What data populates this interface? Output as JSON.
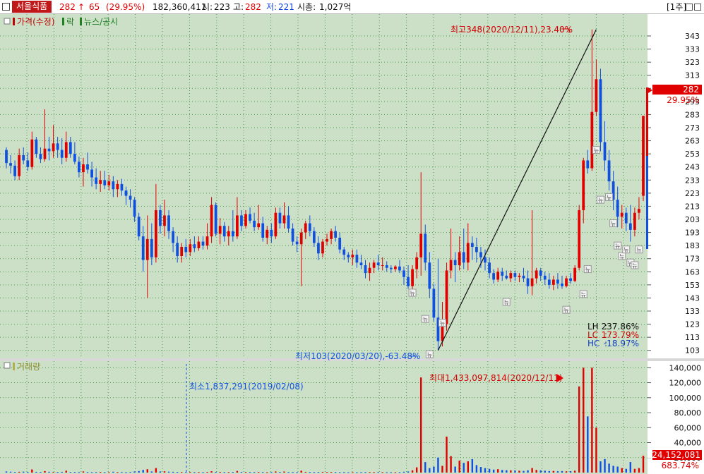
{
  "header": {
    "stock_name": "서울식품",
    "price": "282",
    "change_arrow": "↑",
    "change": "65",
    "change_pct": "(29.95%)",
    "volume": "182,360,411",
    "open_label": "시:",
    "open": "223",
    "high_label": "고:",
    "high": "282",
    "low_label": "저:",
    "low": "221",
    "mcap_label": "시총:",
    "mcap": "1,027억",
    "period": "[1주]"
  },
  "price_panel": {
    "legend": [
      {
        "label": "가격(수정)",
        "color": "#c00000"
      },
      {
        "label": "락",
        "color": "#208020"
      },
      {
        "label": "뉴스/공시",
        "color": "#208020"
      }
    ],
    "high_note": "최고348(2020/12/11),23.40%",
    "low_note": "최저103(2020/03/20),-63.48%",
    "news_glyph": "뉴",
    "current_price_tag": "282",
    "current_pct_tag": "29.95%",
    "stats": [
      {
        "label": "LH",
        "sep": ":",
        "value": "237.86%",
        "color": "#111111"
      },
      {
        "label": "LC",
        "sep": ":",
        "value": "173.79%",
        "color": "#d00000"
      },
      {
        "label": "HC",
        "sep": ":",
        "value": "-18.97%",
        "color": "#1040c0"
      }
    ]
  },
  "volume_panel": {
    "legend": "거래량",
    "min_note": "최소1,837,291(2019/02/08)",
    "max_note": "최대1,433,097,814(2020/12/11)",
    "current_volume_tag": "224,152,081",
    "current_pct_tag": "683.74%"
  },
  "colors": {
    "background": "#cce0c8",
    "axis_background": "#ffffff",
    "up": "#e00000",
    "down": "#1050e0",
    "grid": "#4a9a4a"
  },
  "chart_data": [
    {
      "type": "candlestick",
      "ylim": [
        98,
        350
      ],
      "y_ticks": [
        103,
        113,
        123,
        133,
        143,
        153,
        163,
        173,
        183,
        193,
        203,
        213,
        223,
        233,
        243,
        253,
        263,
        273,
        283,
        293,
        303,
        313,
        323,
        333,
        343
      ],
      "grid": true,
      "trendline": {
        "from": {
          "index": 101,
          "value": 103
        },
        "to": {
          "index": 138,
          "value": 348
        }
      },
      "candles": [
        [
          256,
          258,
          242,
          246
        ],
        [
          246,
          252,
          238,
          244
        ],
        [
          244,
          248,
          233,
          236
        ],
        [
          236,
          257,
          233,
          252
        ],
        [
          252,
          258,
          245,
          248
        ],
        [
          248,
          254,
          240,
          243
        ],
        [
          243,
          270,
          241,
          264
        ],
        [
          264,
          266,
          250,
          253
        ],
        [
          253,
          258,
          246,
          249
        ],
        [
          249,
          287,
          247,
          257
        ],
        [
          257,
          266,
          248,
          255
        ],
        [
          255,
          275,
          250,
          261
        ],
        [
          261,
          266,
          250,
          256
        ],
        [
          256,
          265,
          245,
          250
        ],
        [
          250,
          270,
          247,
          262
        ],
        [
          262,
          266,
          250,
          253
        ],
        [
          253,
          262,
          245,
          247
        ],
        [
          247,
          251,
          235,
          239
        ],
        [
          239,
          250,
          228,
          245
        ],
        [
          245,
          254,
          238,
          241
        ],
        [
          241,
          247,
          228,
          235
        ],
        [
          235,
          242,
          226,
          230
        ],
        [
          230,
          240,
          224,
          233
        ],
        [
          233,
          240,
          226,
          229
        ],
        [
          229,
          237,
          225,
          232
        ],
        [
          232,
          236,
          220,
          226
        ],
        [
          226,
          233,
          220,
          230
        ],
        [
          230,
          234,
          221,
          225
        ],
        [
          225,
          228,
          214,
          221
        ],
        [
          221,
          226,
          212,
          218
        ],
        [
          218,
          220,
          201,
          205
        ],
        [
          205,
          208,
          187,
          190
        ],
        [
          190,
          198,
          163,
          172
        ],
        [
          172,
          206,
          143,
          188
        ],
        [
          188,
          200,
          168,
          174
        ],
        [
          174,
          230,
          170,
          210
        ],
        [
          210,
          214,
          192,
          198
        ],
        [
          198,
          218,
          190,
          206
        ],
        [
          206,
          210,
          188,
          194
        ],
        [
          194,
          197,
          178,
          185
        ],
        [
          185,
          190,
          170,
          175
        ],
        [
          175,
          185,
          170,
          182
        ],
        [
          182,
          188,
          174,
          178
        ],
        [
          178,
          188,
          175,
          184
        ],
        [
          184,
          190,
          178,
          181
        ],
        [
          181,
          190,
          179,
          186
        ],
        [
          186,
          190,
          180,
          183
        ],
        [
          183,
          200,
          180,
          190
        ],
        [
          190,
          220,
          185,
          214
        ],
        [
          214,
          216,
          190,
          192
        ],
        [
          192,
          204,
          184,
          198
        ],
        [
          198,
          201,
          186,
          190
        ],
        [
          190,
          198,
          183,
          194
        ],
        [
          194,
          210,
          186,
          190
        ],
        [
          190,
          220,
          188,
          206
        ],
        [
          206,
          210,
          194,
          198
        ],
        [
          198,
          210,
          196,
          207
        ],
        [
          207,
          212,
          200,
          202
        ],
        [
          202,
          208,
          194,
          197
        ],
        [
          197,
          214,
          195,
          200
        ],
        [
          200,
          205,
          186,
          189
        ],
        [
          189,
          198,
          184,
          195
        ],
        [
          195,
          200,
          185,
          190
        ],
        [
          190,
          212,
          188,
          208
        ],
        [
          208,
          212,
          196,
          200
        ],
        [
          200,
          216,
          196,
          206
        ],
        [
          206,
          213,
          193,
          196
        ],
        [
          196,
          200,
          183,
          186
        ],
        [
          186,
          190,
          178,
          184
        ],
        [
          184,
          196,
          152,
          193
        ],
        [
          193,
          202,
          188,
          200
        ],
        [
          200,
          206,
          190,
          194
        ],
        [
          194,
          197,
          182,
          185
        ],
        [
          185,
          190,
          172,
          177
        ],
        [
          177,
          188,
          174,
          186
        ],
        [
          186,
          192,
          183,
          188
        ],
        [
          188,
          196,
          184,
          194
        ],
        [
          194,
          198,
          186,
          189
        ],
        [
          189,
          193,
          177,
          180
        ],
        [
          180,
          182,
          172,
          176
        ],
        [
          176,
          178,
          170,
          174
        ],
        [
          174,
          180,
          168,
          176
        ],
        [
          176,
          180,
          166,
          170
        ],
        [
          170,
          176,
          165,
          168
        ],
        [
          168,
          172,
          158,
          162
        ],
        [
          162,
          170,
          156,
          166
        ],
        [
          166,
          172,
          162,
          170
        ],
        [
          170,
          176,
          164,
          168
        ],
        [
          168,
          174,
          164,
          168
        ],
        [
          168,
          171,
          163,
          166
        ],
        [
          166,
          168,
          162,
          165
        ],
        [
          165,
          168,
          163,
          167
        ],
        [
          167,
          172,
          162,
          164
        ],
        [
          164,
          167,
          153,
          159
        ],
        [
          159,
          168,
          150,
          152
        ],
        [
          152,
          168,
          146,
          165
        ],
        [
          165,
          178,
          158,
          174
        ],
        [
          174,
          239,
          160,
          192
        ],
        [
          192,
          199,
          164,
          170
        ],
        [
          170,
          178,
          143,
          150
        ],
        [
          150,
          154,
          125,
          128
        ],
        [
          128,
          173,
          103,
          110
        ],
        [
          110,
          140,
          106,
          123
        ],
        [
          123,
          170,
          118,
          164
        ],
        [
          164,
          196,
          158,
          172
        ],
        [
          172,
          178,
          155,
          168
        ],
        [
          168,
          190,
          164,
          178
        ],
        [
          178,
          196,
          165,
          170
        ],
        [
          170,
          200,
          164,
          185
        ],
        [
          185,
          190,
          172,
          182
        ],
        [
          182,
          189,
          170,
          178
        ],
        [
          178,
          182,
          166,
          174
        ],
        [
          174,
          180,
          164,
          170
        ],
        [
          170,
          174,
          158,
          162
        ],
        [
          162,
          165,
          154,
          157
        ],
        [
          157,
          166,
          155,
          163
        ],
        [
          163,
          166,
          156,
          160
        ],
        [
          160,
          164,
          157,
          158
        ],
        [
          158,
          164,
          155,
          162
        ],
        [
          162,
          164,
          156,
          159
        ],
        [
          159,
          162,
          155,
          160
        ],
        [
          160,
          166,
          155,
          158
        ],
        [
          158,
          164,
          146,
          152
        ],
        [
          152,
          210,
          145,
          158
        ],
        [
          158,
          166,
          154,
          164
        ],
        [
          164,
          166,
          156,
          160
        ],
        [
          160,
          163,
          153,
          157
        ],
        [
          157,
          162,
          150,
          153
        ],
        [
          153,
          160,
          149,
          157
        ],
        [
          157,
          162,
          150,
          154
        ],
        [
          154,
          160,
          150,
          152
        ],
        [
          152,
          160,
          151,
          158
        ],
        [
          158,
          162,
          154,
          156
        ],
        [
          156,
          168,
          155,
          166
        ],
        [
          166,
          214,
          164,
          210
        ],
        [
          210,
          250,
          200,
          248
        ],
        [
          248,
          256,
          238,
          242
        ],
        [
          242,
          348,
          240,
          285
        ],
        [
          285,
          325,
          282,
          310
        ],
        [
          310,
          318,
          255,
          262
        ],
        [
          262,
          278,
          240,
          248
        ],
        [
          248,
          256,
          225,
          232
        ],
        [
          232,
          240,
          210,
          218
        ],
        [
          218,
          228,
          197,
          205
        ],
        [
          205,
          214,
          196,
          208
        ],
        [
          208,
          212,
          194,
          200
        ],
        [
          200,
          214,
          186,
          195
        ],
        [
          195,
          212,
          190,
          208
        ],
        [
          208,
          220,
          203,
          211
        ],
        [
          221,
          282,
          217,
          282
        ]
      ],
      "news_markers": [
        {
          "index": 95,
          "value": 147
        },
        {
          "index": 98,
          "value": 127
        },
        {
          "index": 99,
          "value": 100
        },
        {
          "index": 102,
          "value": 124
        },
        {
          "index": 117,
          "value": 140
        },
        {
          "index": 131,
          "value": 134
        },
        {
          "index": 135,
          "value": 146
        },
        {
          "index": 136,
          "value": 165
        },
        {
          "index": 138,
          "value": 256
        },
        {
          "index": 139,
          "value": 218
        },
        {
          "index": 141,
          "value": 220
        },
        {
          "index": 142,
          "value": 200
        },
        {
          "index": 143,
          "value": 183
        },
        {
          "index": 144,
          "value": 175
        },
        {
          "index": 145,
          "value": 180
        },
        {
          "index": 146,
          "value": 170
        },
        {
          "index": 147,
          "value": 168
        },
        {
          "index": 148,
          "value": 180
        }
      ]
    },
    {
      "type": "bar",
      "title": "거래량",
      "ylim": [
        0,
        145000
      ],
      "y_ticks": [
        20000,
        40000,
        60000,
        80000,
        100000,
        120000,
        140000
      ],
      "y_tick_labels": [
        "20,000",
        "40,000",
        "60,000",
        "80,000",
        "100,000",
        "120,000",
        "140,000"
      ],
      "grid": true,
      "values": [
        1500,
        1200,
        900,
        1100,
        1300,
        1000,
        4200,
        1000,
        900,
        2000,
        1100,
        900,
        800,
        1000,
        2500,
        900,
        800,
        700,
        1500,
        800,
        600,
        700,
        900,
        600,
        500,
        1200,
        700,
        800,
        600,
        900,
        1500,
        2000,
        3500,
        4500,
        1500,
        6000,
        1500,
        1700,
        1200,
        1100,
        900,
        800,
        700,
        900,
        700,
        800,
        600,
        900,
        1800,
        1000,
        900,
        700,
        800,
        900,
        2200,
        1000,
        900,
        800,
        700,
        900,
        800,
        600,
        700,
        1500,
        900,
        1400,
        800,
        700,
        600,
        2500,
        1000,
        800,
        700,
        900,
        1000,
        800,
        900,
        700,
        600,
        700,
        500,
        600,
        500,
        600,
        700,
        800,
        600,
        700,
        600,
        500,
        600,
        500,
        700,
        1200,
        1500,
        3000,
        7000,
        127000,
        14000,
        6000,
        8000,
        20000,
        9000,
        48000,
        22000,
        8000,
        16000,
        13000,
        15000,
        18000,
        10000,
        7500,
        6000,
        5000,
        4000,
        4500,
        3500,
        3200,
        3000,
        2800,
        2500,
        2200,
        3000,
        6000,
        3500,
        3000,
        2500,
        2000,
        2200,
        1800,
        2000,
        1700,
        1800,
        2500,
        115000,
        140000,
        75000,
        140000,
        60000,
        15000,
        18000,
        12000,
        9000,
        8000,
        6000,
        5000,
        14000,
        5000,
        6000,
        22400
      ],
      "colors_up_index_hint": "bars colored by candle direction"
    }
  ]
}
